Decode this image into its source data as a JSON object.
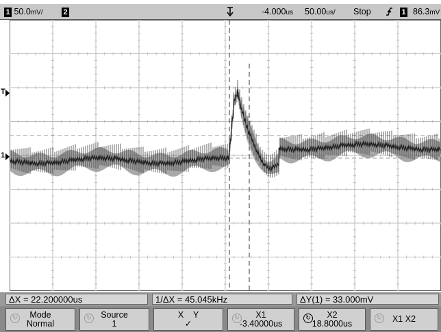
{
  "status": {
    "ch1_number": "1",
    "ch1_scale": "50.0",
    "ch1_unit": "mV/",
    "ch2_number": "2",
    "trigger_marker_icon": "trigger-position-marker",
    "time_offset": "-4.000",
    "time_offset_unit": "us",
    "timebase": "50.00",
    "timebase_unit": "us/",
    "run_state": "Stop",
    "trigger_slope_icon": "rising-edge-icon",
    "trigger_channel": "1",
    "trigger_level": "86.3",
    "trigger_level_unit": "mV"
  },
  "markers": {
    "trigger_level": "T",
    "channel1_ground": "1"
  },
  "measurements": {
    "delta_x": "ΔX = 22.200000us",
    "inverse_delta_x": "1/ΔX = 45.045kHz",
    "delta_y": "ΔY(1) = 33.000mV"
  },
  "softkeys": [
    {
      "line1": "Mode",
      "line2": "Normal",
      "icon": "entry-knob-icon"
    },
    {
      "line1": "Source",
      "line2": "1",
      "icon": "entry-knob-icon"
    },
    {
      "line1": "X    Y",
      "line2": "✓",
      "icon": ""
    },
    {
      "line1": "X1",
      "line2": "-3.40000us",
      "icon": "entry-knob-icon"
    },
    {
      "line1": "X2",
      "line2": "18.8000us",
      "icon": "entry-knob-icon-active"
    },
    {
      "line1": "X1 X2",
      "line2": "",
      "icon": "entry-knob-icon"
    }
  ],
  "colors": {
    "background": "#ffffff",
    "grid": "#bdbdbd",
    "trace_dark": "#1e1e1e",
    "trace_light": "#8c8c8c"
  }
}
